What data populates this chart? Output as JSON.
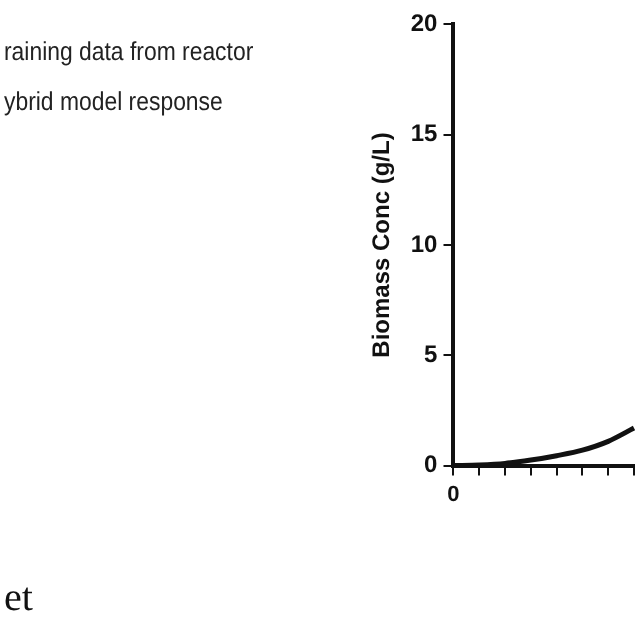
{
  "chart_data": {
    "type": "line",
    "ylabel": "Biomass Conc (g/L)",
    "categories": [
      "0",
      null,
      null,
      null,
      null,
      null,
      null,
      null
    ],
    "series": [
      {
        "color": "#111111",
        "values": [
          0,
          0.03,
          0.1,
          0.25,
          0.45,
          0.7,
          1.1,
          1.7
        ]
      }
    ],
    "ylim": [
      0,
      20
    ],
    "yticks": [
      0,
      5,
      10,
      15,
      20
    ],
    "grid": false,
    "marker": "none",
    "line_style": "solid",
    "annotations": [
      "raining data from reactor",
      "ybrid model response",
      "et"
    ]
  }
}
